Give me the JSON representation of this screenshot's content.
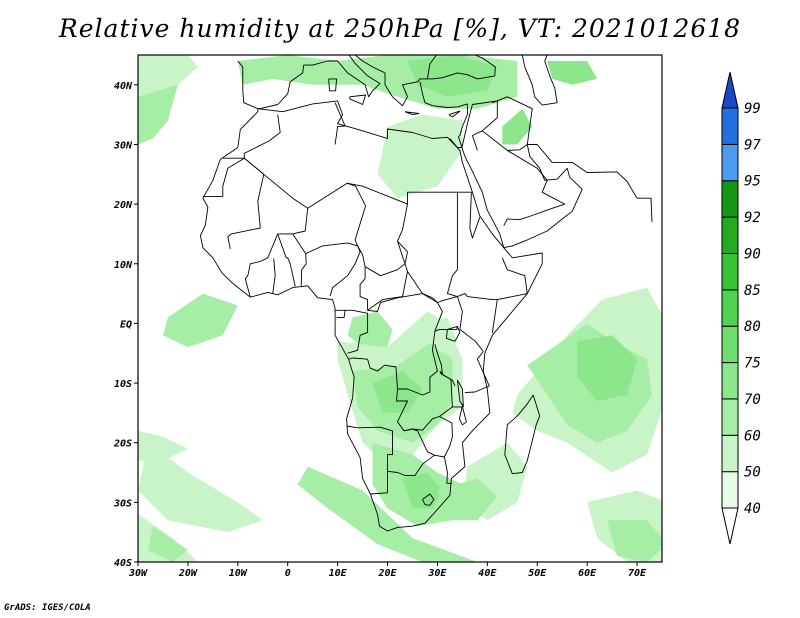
{
  "title": "Relative humidity at 250hPa [%], VT: 2021012618",
  "credit": "GrADS: IGES/COLA",
  "map": {
    "projection": "lat-lon",
    "lon_range": [
      -30,
      75
    ],
    "lat_range": [
      -40,
      45
    ],
    "lon_ticks": [
      "30W",
      "20W",
      "10W",
      "0",
      "10E",
      "20E",
      "30E",
      "40E",
      "50E",
      "60E",
      "70E"
    ],
    "lat_ticks": [
      "40N",
      "30N",
      "20N",
      "10N",
      "EQ",
      "10S",
      "20S",
      "30S",
      "40S"
    ],
    "field": "relative_humidity",
    "level": "250hPa",
    "units": "%",
    "valid_time": "2021012618"
  },
  "colorbar": {
    "levels": [
      "40",
      "50",
      "60",
      "70",
      "75",
      "80",
      "85",
      "90",
      "92",
      "95",
      "97",
      "99"
    ],
    "colors": [
      "#ffffff",
      "#e6fce6",
      "#c8f4c8",
      "#a6eda6",
      "#8ce68c",
      "#6ede6e",
      "#4fd44f",
      "#35c335",
      "#22aa22",
      "#149614",
      "#4a9cf0",
      "#2470e0",
      "#1848c8"
    ]
  }
}
